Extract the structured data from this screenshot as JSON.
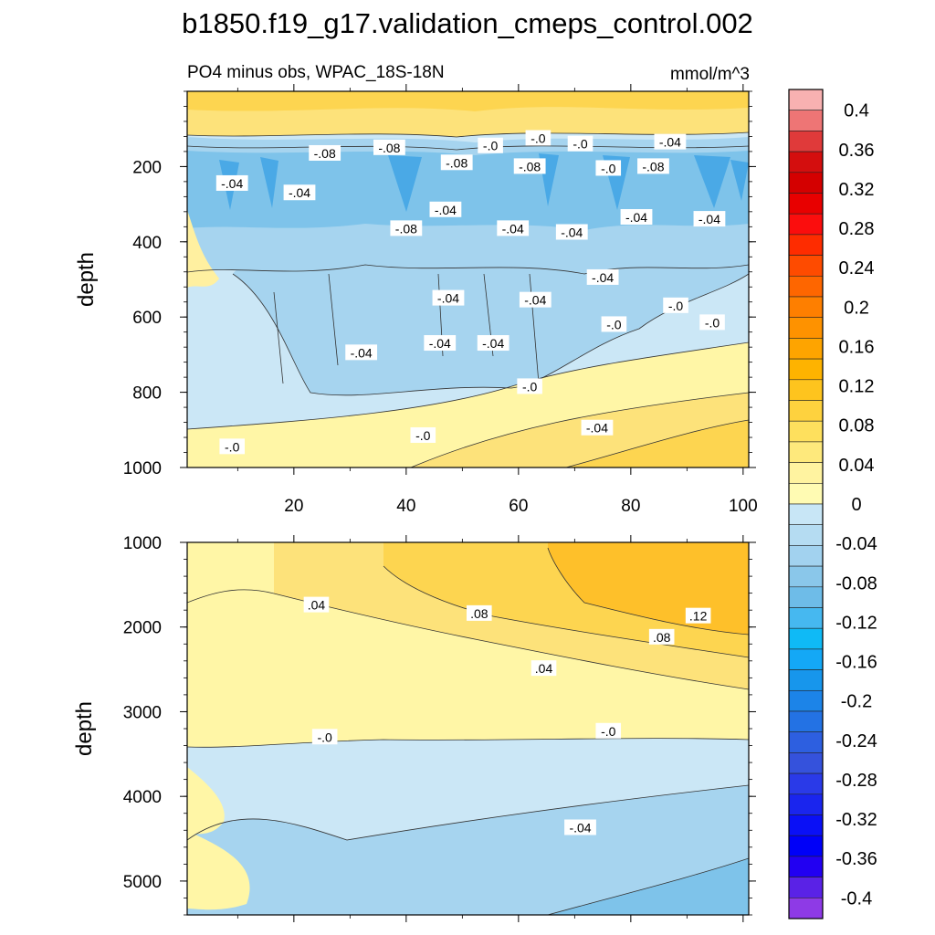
{
  "title": "b1850.f19_g17.validation_cmeps_control.002",
  "subtitle_left": "PO4 minus obs, WPAC_18S-18N",
  "subtitle_right": "mmol/m^3",
  "chart_data": [
    {
      "type": "contour",
      "panel": "upper",
      "ylabel": "depth",
      "xlabel": "",
      "xlim": [
        1,
        101
      ],
      "ylim": [
        1000,
        0
      ],
      "y_ticks": [
        "200",
        "400",
        "600",
        "800",
        "1000"
      ],
      "x_ticks": [
        "20",
        "40",
        "60",
        "80",
        "100"
      ],
      "contour_labels": [
        {
          "text": "-.08",
          "x": 25.5,
          "y": 165
        },
        {
          "text": "-.08",
          "x": 37,
          "y": 150
        },
        {
          "text": "-.0",
          "x": 55,
          "y": 145
        },
        {
          "text": "-.0",
          "x": 63.5,
          "y": 125
        },
        {
          "text": "-.0",
          "x": 71,
          "y": 140
        },
        {
          "text": "-.04",
          "x": 87,
          "y": 135
        },
        {
          "text": "-.04",
          "x": 9,
          "y": 245
        },
        {
          "text": "-.08",
          "x": 49,
          "y": 190
        },
        {
          "text": "-.08",
          "x": 62,
          "y": 200
        },
        {
          "text": "-.0",
          "x": 76,
          "y": 205
        },
        {
          "text": "-.08",
          "x": 84,
          "y": 200
        },
        {
          "text": "-.04",
          "x": 21,
          "y": 270
        },
        {
          "text": "-.08",
          "x": 40,
          "y": 365
        },
        {
          "text": "-.04",
          "x": 47,
          "y": 315
        },
        {
          "text": "-.04",
          "x": 59,
          "y": 365
        },
        {
          "text": "-.04",
          "x": 69.5,
          "y": 375
        },
        {
          "text": "-.04",
          "x": 81,
          "y": 335
        },
        {
          "text": "-.04",
          "x": 94,
          "y": 340
        },
        {
          "text": "-.04",
          "x": 47.5,
          "y": 550
        },
        {
          "text": "-.04",
          "x": 63,
          "y": 555
        },
        {
          "text": "-.04",
          "x": 75,
          "y": 495
        },
        {
          "text": "-.0",
          "x": 77,
          "y": 620
        },
        {
          "text": "-.0",
          "x": 88,
          "y": 570
        },
        {
          "text": "-.0",
          "x": 94.5,
          "y": 615
        },
        {
          "text": "-.04",
          "x": 32,
          "y": 695
        },
        {
          "text": "-.04",
          "x": 46,
          "y": 670
        },
        {
          "text": "-.04",
          "x": 55.5,
          "y": 670
        },
        {
          "text": "-.0",
          "x": 62,
          "y": 785
        },
        {
          "text": "-.0",
          "x": 43,
          "y": 915
        },
        {
          "text": "-.04",
          "x": 74,
          "y": 895
        },
        {
          "text": "-.0",
          "x": 9,
          "y": 945
        }
      ],
      "field_description": {
        "surface_0_100m": 0.04,
        "thermocline_150_300m": -0.09,
        "intermediate_300_600m": -0.05,
        "deep_700_1000m_west": -0.02,
        "deep_700_1000m_east": 0.06
      }
    },
    {
      "type": "contour",
      "panel": "lower",
      "ylabel": "depth",
      "xlabel": "",
      "xlim": [
        1,
        101
      ],
      "ylim": [
        5400,
        1000
      ],
      "y_ticks": [
        "1000",
        "2000",
        "3000",
        "4000",
        "5000"
      ],
      "contour_labels": [
        {
          "text": ".04",
          "x": 24,
          "y": 1740
        },
        {
          "text": ".08",
          "x": 53,
          "y": 1840
        },
        {
          "text": ".12",
          "x": 92,
          "y": 1870
        },
        {
          "text": ".08",
          "x": 85.5,
          "y": 2120
        },
        {
          "text": ".04",
          "x": 64.5,
          "y": 2490
        },
        {
          "text": "-.0",
          "x": 25.5,
          "y": 3300
        },
        {
          "text": "-.0",
          "x": 76,
          "y": 3230
        },
        {
          "text": "-.04",
          "x": 71,
          "y": 4370
        }
      ],
      "field_description": {
        "upper_1000_1500m_east": 0.12,
        "mid_2000_3000m": 0.03,
        "deep_3300_4500m": -0.03,
        "abyss_4500_5400m_east": -0.06
      }
    }
  ],
  "colorbar": {
    "labels": [
      "0.4",
      "0.36",
      "0.32",
      "0.28",
      "0.24",
      "0.2",
      "0.16",
      "0.12",
      "0.08",
      "0.04",
      "0",
      "-0.04",
      "-0.08",
      "-0.12",
      "-0.16",
      "-0.2",
      "-0.24",
      "-0.28",
      "-0.32",
      "-0.36",
      "-0.4"
    ],
    "levels": [
      0.4,
      0.36,
      0.32,
      0.28,
      0.24,
      0.2,
      0.16,
      0.12,
      0.08,
      0.04,
      0,
      -0.04,
      -0.08,
      -0.12,
      -0.16,
      -0.2,
      -0.24,
      -0.28,
      -0.32,
      -0.36,
      -0.4
    ],
    "colors": [
      "#f8b1b1",
      "#ee7575",
      "#e03a3a",
      "#d40e0e",
      "#d40000",
      "#e80000",
      "#fb0d0d",
      "#fe2c00",
      "#fe4b00",
      "#fe6600",
      "#fe7f00",
      "#fe9200",
      "#fea400",
      "#feb300",
      "#fec41e",
      "#fed23e",
      "#fee05d",
      "#fee97c",
      "#fff3a0",
      "#fffbb3",
      "#c8e6f6",
      "#b5dcf2",
      "#a2d2ef",
      "#8ac7ea",
      "#6ebce8",
      "#46b8f0",
      "#0fbaf6",
      "#14a8f6",
      "#1796ec",
      "#1c84e8",
      "#2372e4",
      "#2d5fe0",
      "#3552dc",
      "#2a3ae8",
      "#1a25ee",
      "#0a10f6",
      "#0000f8",
      "#2200f2",
      "#5a22e6",
      "#8e3ae6"
    ]
  }
}
